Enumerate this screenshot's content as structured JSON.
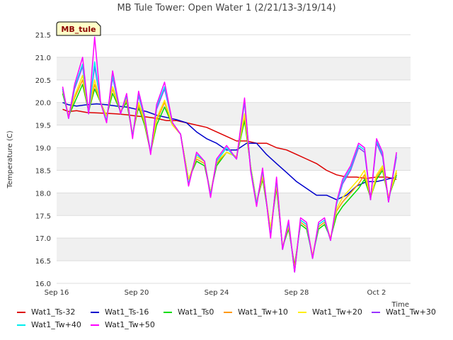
{
  "chart_data": {
    "type": "line",
    "title": "MB Tule Tower: Open Water 1 (2/21/13-3/19/14)",
    "xlabel": "Time",
    "ylabel": "Temperature (C)",
    "site_label": "MB_tule",
    "x_tick_labels": [
      "Sep 16",
      "Sep 20",
      "Sep 24",
      "Sep 28",
      "Oct 2"
    ],
    "x_tick_days": [
      0,
      4,
      8,
      12,
      16
    ],
    "xlim_days": [
      0,
      17.7
    ],
    "ylim": [
      16.0,
      21.5
    ],
    "y_ticks": [
      16.0,
      16.5,
      17.0,
      17.5,
      18.0,
      18.5,
      19.0,
      19.5,
      20.0,
      20.5,
      21.0,
      21.5
    ],
    "y_tick_labels": [
      "16.0",
      "16.5",
      "17.0",
      "17.5",
      "18.0",
      "18.5",
      "19.0",
      "19.5",
      "20.0",
      "20.5",
      "21.0",
      "21.5"
    ],
    "grid": "horizontal bands",
    "legend_position": "bottom",
    "series": [
      {
        "name": "Wat1_Ts-32",
        "color": "#dd0000",
        "x": [
          0.3,
          0.6,
          1.0,
          1.5,
          2.0,
          2.5,
          3.0,
          3.5,
          4.0,
          4.5,
          5.0,
          5.5,
          6.0,
          6.5,
          7.0,
          7.5,
          8.0,
          8.5,
          9.0,
          9.5,
          10.0,
          10.5,
          11.0,
          11.5,
          12.0,
          12.5,
          13.0,
          13.5,
          14.0,
          14.5,
          15.0,
          15.5,
          16.0,
          16.5,
          17.0
        ],
        "values": [
          19.85,
          19.8,
          19.82,
          19.78,
          19.77,
          19.76,
          19.75,
          19.73,
          19.7,
          19.68,
          19.65,
          19.6,
          19.6,
          19.55,
          19.5,
          19.45,
          19.35,
          19.25,
          19.15,
          19.15,
          19.1,
          19.1,
          19.0,
          18.95,
          18.85,
          18.75,
          18.65,
          18.5,
          18.4,
          18.35,
          18.35,
          18.32,
          18.35,
          18.35,
          18.3
        ]
      },
      {
        "name": "Wat1_Ts-16",
        "color": "#0000cc",
        "x": [
          0.3,
          0.6,
          1.0,
          1.5,
          2.0,
          2.5,
          3.0,
          3.5,
          4.0,
          4.5,
          5.0,
          5.5,
          6.0,
          6.5,
          7.0,
          7.5,
          8.0,
          8.5,
          9.0,
          9.5,
          10.0,
          10.5,
          11.0,
          11.5,
          12.0,
          12.5,
          13.0,
          13.5,
          14.0,
          14.5,
          15.0,
          15.5,
          16.0,
          16.5,
          17.0
        ],
        "values": [
          20.0,
          19.95,
          19.92,
          19.95,
          19.97,
          19.95,
          19.92,
          19.9,
          19.85,
          19.8,
          19.72,
          19.67,
          19.62,
          19.55,
          19.35,
          19.2,
          19.1,
          18.95,
          18.95,
          19.1,
          19.1,
          18.85,
          18.65,
          18.45,
          18.25,
          18.1,
          17.95,
          17.95,
          17.85,
          17.95,
          18.15,
          18.25,
          18.25,
          18.3,
          18.35
        ]
      },
      {
        "name": "Wat1_Ts0",
        "color": "#00dd00",
        "x": [
          0.3,
          0.6,
          0.9,
          1.3,
          1.6,
          1.9,
          2.2,
          2.5,
          2.8,
          3.2,
          3.5,
          3.8,
          4.1,
          4.4,
          4.7,
          5.0,
          5.4,
          5.8,
          6.2,
          6.6,
          7.0,
          7.4,
          7.7,
          8.0,
          8.5,
          9.0,
          9.4,
          9.7,
          10.0,
          10.3,
          10.7,
          11.0,
          11.3,
          11.6,
          11.9,
          12.2,
          12.5,
          12.8,
          13.1,
          13.4,
          13.7,
          14.0,
          14.3,
          14.7,
          15.1,
          15.4,
          15.7,
          16.0,
          16.3,
          16.6,
          17.0
        ],
        "values": [
          20.2,
          19.7,
          20.0,
          20.4,
          19.8,
          20.3,
          20.0,
          19.7,
          20.2,
          19.8,
          20.0,
          19.3,
          19.9,
          19.5,
          18.9,
          19.5,
          19.9,
          19.5,
          19.3,
          18.3,
          18.7,
          18.6,
          18.0,
          18.6,
          18.9,
          18.8,
          19.6,
          18.6,
          17.8,
          18.3,
          17.2,
          18.1,
          16.8,
          17.2,
          16.4,
          17.3,
          17.2,
          16.6,
          17.2,
          17.3,
          17.0,
          17.5,
          17.7,
          17.9,
          18.1,
          18.3,
          17.9,
          18.3,
          18.5,
          17.9,
          18.4
        ]
      },
      {
        "name": "Wat1_Tw+10",
        "color": "#ff9900",
        "x": [
          0.3,
          0.6,
          0.9,
          1.3,
          1.6,
          1.9,
          2.2,
          2.5,
          2.8,
          3.2,
          3.5,
          3.8,
          4.1,
          4.4,
          4.7,
          5.0,
          5.4,
          5.8,
          6.2,
          6.6,
          7.0,
          7.4,
          7.7,
          8.0,
          8.5,
          9.0,
          9.4,
          9.7,
          10.0,
          10.3,
          10.7,
          11.0,
          11.3,
          11.6,
          11.9,
          12.2,
          12.5,
          12.8,
          13.1,
          13.4,
          13.7,
          14.0,
          14.3,
          14.7,
          15.1,
          15.4,
          15.7,
          16.0,
          16.3,
          16.6,
          17.0
        ],
        "values": [
          20.25,
          19.7,
          20.1,
          20.5,
          19.8,
          20.4,
          20.0,
          19.7,
          20.3,
          19.8,
          20.05,
          19.3,
          19.95,
          19.55,
          18.9,
          19.6,
          20.0,
          19.5,
          19.3,
          18.3,
          18.75,
          18.65,
          18.0,
          18.65,
          18.9,
          18.8,
          19.7,
          18.6,
          17.8,
          18.35,
          17.2,
          18.15,
          16.8,
          17.25,
          16.35,
          17.35,
          17.25,
          16.6,
          17.25,
          17.35,
          17.0,
          17.6,
          17.8,
          18.0,
          18.2,
          18.4,
          17.9,
          18.35,
          18.55,
          17.9,
          18.45
        ]
      },
      {
        "name": "Wat1_Tw+20",
        "color": "#ffee00",
        "x": [
          0.3,
          0.6,
          0.9,
          1.3,
          1.6,
          1.9,
          2.2,
          2.5,
          2.8,
          3.2,
          3.5,
          3.8,
          4.1,
          4.4,
          4.7,
          5.0,
          5.4,
          5.8,
          6.2,
          6.6,
          7.0,
          7.4,
          7.7,
          8.0,
          8.5,
          9.0,
          9.4,
          9.7,
          10.0,
          10.3,
          10.7,
          11.0,
          11.3,
          11.6,
          11.9,
          12.2,
          12.5,
          12.8,
          13.1,
          13.4,
          13.7,
          14.0,
          14.3,
          14.7,
          15.1,
          15.4,
          15.7,
          16.0,
          16.3,
          16.6,
          17.0
        ],
        "values": [
          20.3,
          19.7,
          20.15,
          20.6,
          19.8,
          20.5,
          20.0,
          19.7,
          20.35,
          19.8,
          20.1,
          19.3,
          20.0,
          19.6,
          18.9,
          19.65,
          20.05,
          19.5,
          19.3,
          18.3,
          18.8,
          18.7,
          18.0,
          18.7,
          18.9,
          18.8,
          19.75,
          18.6,
          17.8,
          18.4,
          17.2,
          18.2,
          16.8,
          17.3,
          16.3,
          17.4,
          17.3,
          16.6,
          17.3,
          17.4,
          17.0,
          17.65,
          17.9,
          18.1,
          18.3,
          18.5,
          17.9,
          18.4,
          18.6,
          17.9,
          18.5
        ]
      },
      {
        "name": "Wat1_Tw+30",
        "color": "#9933ff",
        "x": [
          0.3,
          0.6,
          0.9,
          1.3,
          1.6,
          1.9,
          2.2,
          2.5,
          2.8,
          3.2,
          3.5,
          3.8,
          4.1,
          4.4,
          4.7,
          5.0,
          5.4,
          5.8,
          6.2,
          6.6,
          7.0,
          7.4,
          7.7,
          8.0,
          8.5,
          9.0,
          9.4,
          9.7,
          10.0,
          10.3,
          10.7,
          11.0,
          11.3,
          11.6,
          11.9,
          12.2,
          12.5,
          12.8,
          13.1,
          13.4,
          13.7,
          14.0,
          14.3,
          14.7,
          15.1,
          15.4,
          15.7,
          16.0,
          16.3,
          16.6,
          17.0
        ],
        "values": [
          20.3,
          19.65,
          20.3,
          20.8,
          19.75,
          20.8,
          20.0,
          19.6,
          20.55,
          19.75,
          20.15,
          19.25,
          20.15,
          19.65,
          18.9,
          19.85,
          20.3,
          19.55,
          19.3,
          18.2,
          18.85,
          18.7,
          17.95,
          18.7,
          19.0,
          18.75,
          20.0,
          18.55,
          17.75,
          18.5,
          17.05,
          18.3,
          16.75,
          17.35,
          16.25,
          17.4,
          17.3,
          16.55,
          17.3,
          17.4,
          16.95,
          17.75,
          18.2,
          18.5,
          19.0,
          18.9,
          17.85,
          19.1,
          18.8,
          17.8,
          18.8
        ]
      },
      {
        "name": "Wat1_Tw+40",
        "color": "#00eeee",
        "x": [
          0.3,
          0.6,
          0.9,
          1.3,
          1.6,
          1.9,
          2.2,
          2.5,
          2.8,
          3.2,
          3.5,
          3.8,
          4.1,
          4.4,
          4.7,
          5.0,
          5.4,
          5.8,
          6.2,
          6.6,
          7.0,
          7.4,
          7.7,
          8.0,
          8.5,
          9.0,
          9.4,
          9.7,
          10.0,
          10.3,
          10.7,
          11.0,
          11.3,
          11.6,
          11.9,
          12.2,
          12.5,
          12.8,
          13.1,
          13.4,
          13.7,
          14.0,
          14.3,
          14.7,
          15.1,
          15.4,
          15.7,
          16.0,
          16.3,
          16.6,
          17.0
        ],
        "values": [
          20.3,
          19.65,
          20.35,
          20.85,
          19.75,
          20.9,
          20.0,
          19.6,
          20.6,
          19.75,
          20.15,
          19.25,
          20.2,
          19.65,
          18.9,
          19.9,
          20.35,
          19.55,
          19.3,
          18.2,
          18.85,
          18.7,
          17.95,
          18.7,
          19.0,
          18.75,
          20.05,
          18.55,
          17.75,
          18.5,
          17.05,
          18.3,
          16.75,
          17.35,
          16.25,
          17.4,
          17.3,
          16.55,
          17.3,
          17.4,
          16.95,
          17.75,
          18.25,
          18.55,
          19.05,
          18.95,
          17.85,
          19.15,
          18.85,
          17.8,
          18.85
        ]
      },
      {
        "name": "Wat1_Tw+50",
        "color": "#ff00ff",
        "x": [
          0.3,
          0.6,
          0.9,
          1.3,
          1.6,
          1.9,
          2.2,
          2.5,
          2.8,
          3.2,
          3.5,
          3.8,
          4.1,
          4.4,
          4.7,
          5.0,
          5.4,
          5.8,
          6.2,
          6.6,
          7.0,
          7.4,
          7.7,
          8.0,
          8.5,
          9.0,
          9.4,
          9.7,
          10.0,
          10.3,
          10.7,
          11.0,
          11.3,
          11.6,
          11.9,
          12.2,
          12.5,
          12.8,
          13.1,
          13.4,
          13.7,
          14.0,
          14.3,
          14.7,
          15.1,
          15.4,
          15.7,
          16.0,
          16.3,
          16.6,
          17.0
        ],
        "values": [
          20.35,
          19.65,
          20.4,
          21.0,
          19.75,
          21.45,
          20.0,
          19.55,
          20.7,
          19.75,
          20.2,
          19.2,
          20.25,
          19.7,
          18.85,
          19.95,
          20.45,
          19.55,
          19.3,
          18.15,
          18.9,
          18.7,
          17.9,
          18.75,
          19.05,
          18.75,
          20.1,
          18.5,
          17.7,
          18.55,
          17.0,
          18.35,
          16.75,
          17.4,
          16.25,
          17.45,
          17.35,
          16.55,
          17.35,
          17.45,
          16.95,
          17.8,
          18.3,
          18.6,
          19.1,
          19.0,
          17.85,
          19.2,
          18.9,
          17.8,
          18.9
        ]
      }
    ]
  }
}
